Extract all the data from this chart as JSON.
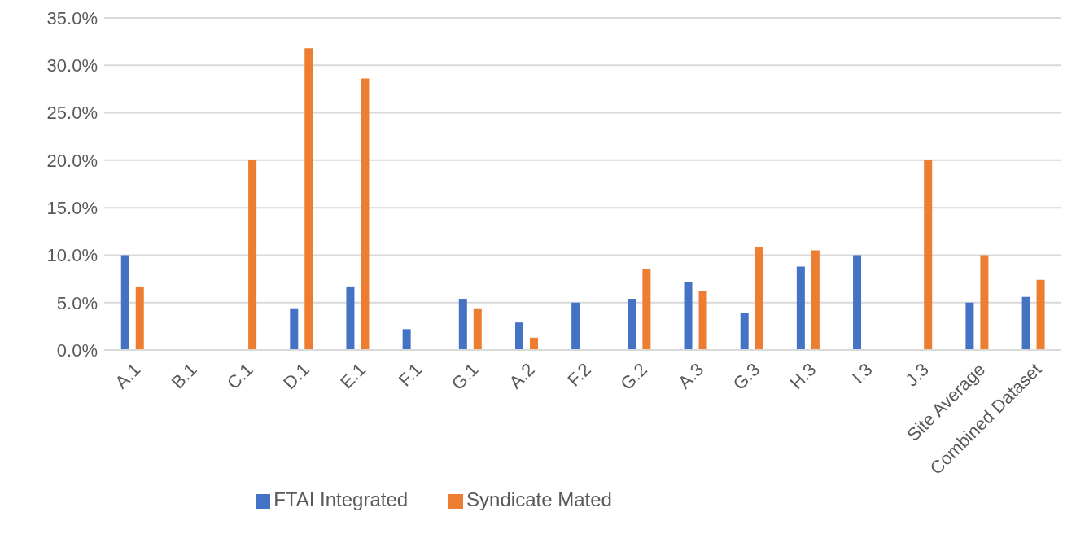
{
  "chart_data": {
    "type": "bar",
    "categories": [
      "A.1",
      "B.1",
      "C.1",
      "D.1",
      "E.1",
      "F.1",
      "G.1",
      "A.2",
      "F.2",
      "G.2",
      "A.3",
      "G.3",
      "H.3",
      "I.3",
      "J.3",
      "Site Average",
      "Combined Dataset"
    ],
    "series": [
      {
        "name": "FTAI Integrated",
        "color": "#4472c4",
        "values": [
          10.0,
          null,
          null,
          4.4,
          6.7,
          2.2,
          5.4,
          2.9,
          5.0,
          5.4,
          7.2,
          3.9,
          8.8,
          10.0,
          null,
          5.0,
          5.6
        ]
      },
      {
        "name": "Syndicate Mated",
        "color": "#ed7d31",
        "values": [
          6.7,
          null,
          20.0,
          31.8,
          28.6,
          null,
          4.4,
          1.3,
          null,
          8.5,
          6.2,
          10.8,
          10.5,
          null,
          20.0,
          10.0,
          7.4
        ]
      }
    ],
    "ylim": [
      0,
      35
    ],
    "yticks": [
      {
        "value": 0,
        "label": "0.0%"
      },
      {
        "value": 5,
        "label": "5.0%"
      },
      {
        "value": 10,
        "label": "10.0%"
      },
      {
        "value": 15,
        "label": "15.0%"
      },
      {
        "value": 20,
        "label": "20.0%"
      },
      {
        "value": 25,
        "label": "25.0%"
      },
      {
        "value": 30,
        "label": "30.0%"
      },
      {
        "value": 35,
        "label": "35.0%"
      }
    ],
    "grid": "y",
    "legend": "bottom"
  }
}
